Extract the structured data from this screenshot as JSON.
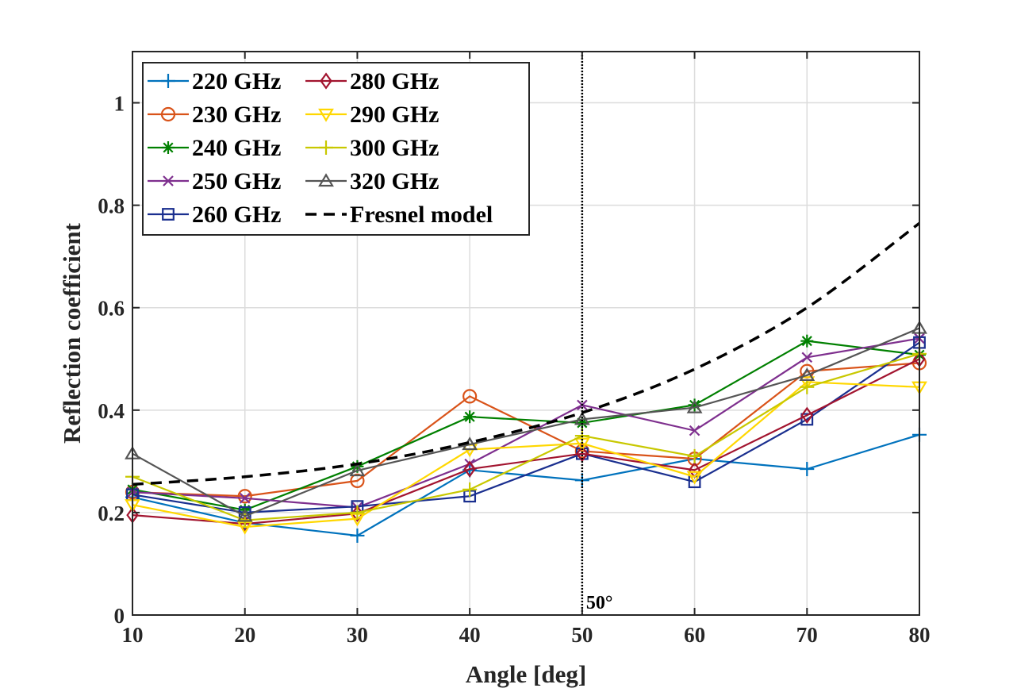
{
  "chart_data": {
    "type": "line",
    "title": "",
    "xlabel": "Angle [deg]",
    "ylabel": "Reflection coefficient",
    "xlim": [
      10,
      80
    ],
    "ylim": [
      0,
      1.1
    ],
    "xticks": [
      10,
      20,
      30,
      40,
      50,
      60,
      70,
      80
    ],
    "xtick_labels": [
      "10",
      "20",
      "30",
      "40",
      "50",
      "60",
      "70",
      "80"
    ],
    "yticks": [
      0,
      0.2,
      0.4,
      0.6,
      0.8,
      1
    ],
    "ytick_labels": [
      "0",
      "0.2",
      "0.4",
      "0.6",
      "0.8",
      "1"
    ],
    "grid": true,
    "legend_position": "top-left",
    "x": [
      10,
      20,
      30,
      40,
      50,
      60,
      70,
      80
    ],
    "series": [
      {
        "name": "220 GHz",
        "color": "#0072BD",
        "marker": "plus",
        "values": [
          0.23,
          0.18,
          0.155,
          0.283,
          0.263,
          0.305,
          0.285,
          0.352
        ]
      },
      {
        "name": "230 GHz",
        "color": "#D95319",
        "marker": "circle",
        "values": [
          0.24,
          0.232,
          0.262,
          0.427,
          0.32,
          0.305,
          0.476,
          0.492
        ]
      },
      {
        "name": "240 GHz",
        "color": "#008000",
        "marker": "asterisk",
        "values": [
          0.245,
          0.205,
          0.29,
          0.387,
          0.375,
          0.41,
          0.535,
          0.508
        ]
      },
      {
        "name": "250 GHz",
        "color": "#7E2F8E",
        "marker": "x",
        "values": [
          0.24,
          0.228,
          0.21,
          0.295,
          0.41,
          0.36,
          0.503,
          0.54
        ]
      },
      {
        "name": "260 GHz",
        "color": "#1A2F8F",
        "marker": "square",
        "values": [
          0.235,
          0.2,
          0.212,
          0.232,
          0.315,
          0.26,
          0.382,
          0.532
        ]
      },
      {
        "name": "280 GHz",
        "color": "#A2142F",
        "marker": "diamond",
        "values": [
          0.195,
          0.178,
          0.198,
          0.285,
          0.315,
          0.283,
          0.39,
          0.5
        ]
      },
      {
        "name": "290 GHz",
        "color": "#FFD700",
        "marker": "triangle-down",
        "values": [
          0.215,
          0.172,
          0.188,
          0.323,
          0.335,
          0.27,
          0.455,
          0.445
        ]
      },
      {
        "name": "300 GHz",
        "color": "#C8C800",
        "marker": "plus",
        "values": [
          0.27,
          0.185,
          0.2,
          0.245,
          0.35,
          0.31,
          0.445,
          0.51
        ]
      },
      {
        "name": "320 GHz",
        "color": "#555555",
        "marker": "triangle-up",
        "values": [
          0.315,
          0.193,
          0.282,
          0.333,
          0.382,
          0.405,
          0.468,
          0.56
        ]
      },
      {
        "name": "Fresnel model",
        "color": "#000000",
        "marker": "none",
        "dashed": true,
        "values": [
          0.255,
          0.27,
          0.295,
          0.337,
          0.395,
          0.48,
          0.6,
          0.765
        ]
      }
    ],
    "annotations": [
      {
        "type": "vertical-line",
        "x": 50,
        "style": "dotted",
        "color": "#000000",
        "label": "50°"
      }
    ]
  }
}
